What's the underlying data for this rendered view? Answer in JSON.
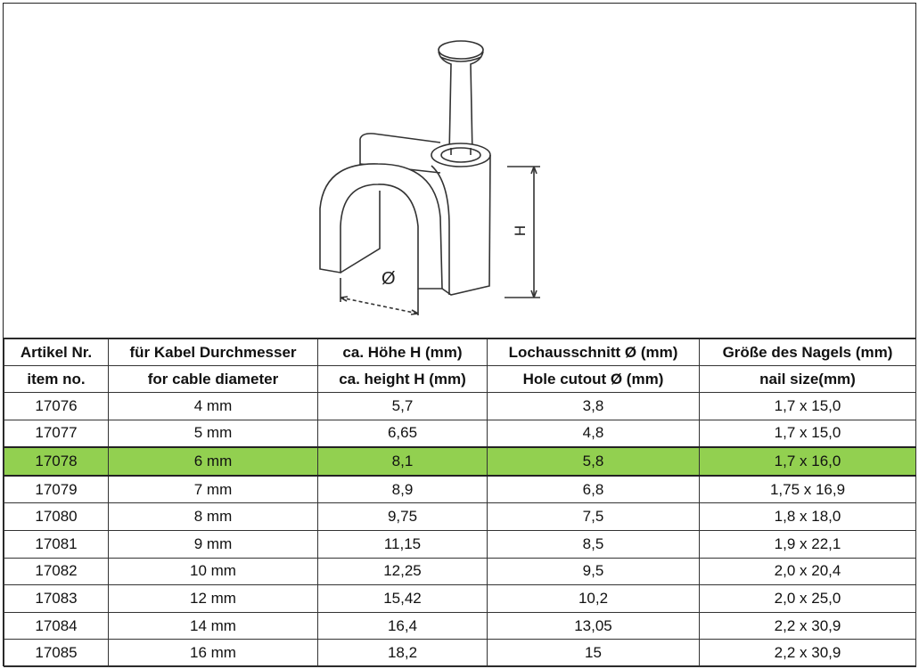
{
  "drawing": {
    "label_diameter": "Ø",
    "label_height": "H"
  },
  "table": {
    "headers_de": [
      "Artikel Nr.",
      "für Kabel Durchmesser",
      "ca. Höhe H (mm)",
      "Lochausschnitt Ø (mm)",
      "Größe des Nagels (mm)"
    ],
    "headers_en": [
      "item no.",
      "for cable diameter",
      "ca. height H (mm)",
      "Hole cutout Ø (mm)",
      "nail size(mm)"
    ],
    "rows": [
      [
        "17076",
        "4 mm",
        "5,7",
        "3,8",
        "1,7 x 15,0"
      ],
      [
        "17077",
        "5 mm",
        "6,65",
        "4,8",
        "1,7 x 15,0"
      ],
      [
        "17078",
        "6 mm",
        "8,1",
        "5,8",
        "1,7 x 16,0"
      ],
      [
        "17079",
        "7 mm",
        "8,9",
        "6,8",
        "1,75 x 16,9"
      ],
      [
        "17080",
        "8 mm",
        "9,75",
        "7,5",
        "1,8 x 18,0"
      ],
      [
        "17081",
        "9 mm",
        "11,15",
        "8,5",
        "1,9 x 22,1"
      ],
      [
        "17082",
        "10 mm",
        "12,25",
        "9,5",
        "2,0 x 20,4"
      ],
      [
        "17083",
        "12 mm",
        "15,42",
        "10,2",
        "2,0 x 25,0"
      ],
      [
        "17084",
        "14 mm",
        "16,4",
        "13,05",
        "2,2 x 30,9"
      ],
      [
        "17085",
        "16 mm",
        "18,2",
        "15",
        "2,2 x 30,9"
      ]
    ],
    "highlighted_row": 2,
    "highlight_color": "#92d050"
  }
}
